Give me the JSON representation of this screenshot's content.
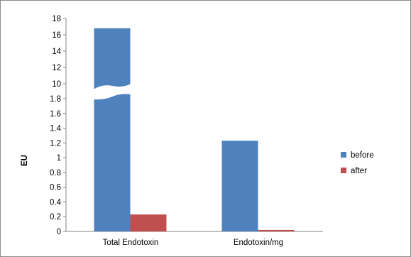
{
  "chart_data": {
    "type": "bar",
    "title": "",
    "xlabel": "",
    "ylabel": "EU",
    "axis_break": {
      "lower_range": [
        0,
        1.9
      ],
      "upper_range": [
        9.9,
        18
      ]
    },
    "y_ticks": [
      "0",
      "0.2",
      "0.4",
      "0.6",
      "0.8",
      "1",
      "1.2",
      "1.4",
      "1.6",
      "1.8",
      "10",
      "12",
      "14",
      "16",
      "18"
    ],
    "categories": [
      "Total Endotoxin",
      "Endotoxin/mg"
    ],
    "series": [
      {
        "name": "before",
        "color": "#4f81bd",
        "values": [
          16.8,
          1.23
        ]
      },
      {
        "name": "after",
        "color": "#c0504d",
        "values": [
          0.23,
          0.02
        ]
      }
    ],
    "legend_position": "right",
    "grid": false
  }
}
